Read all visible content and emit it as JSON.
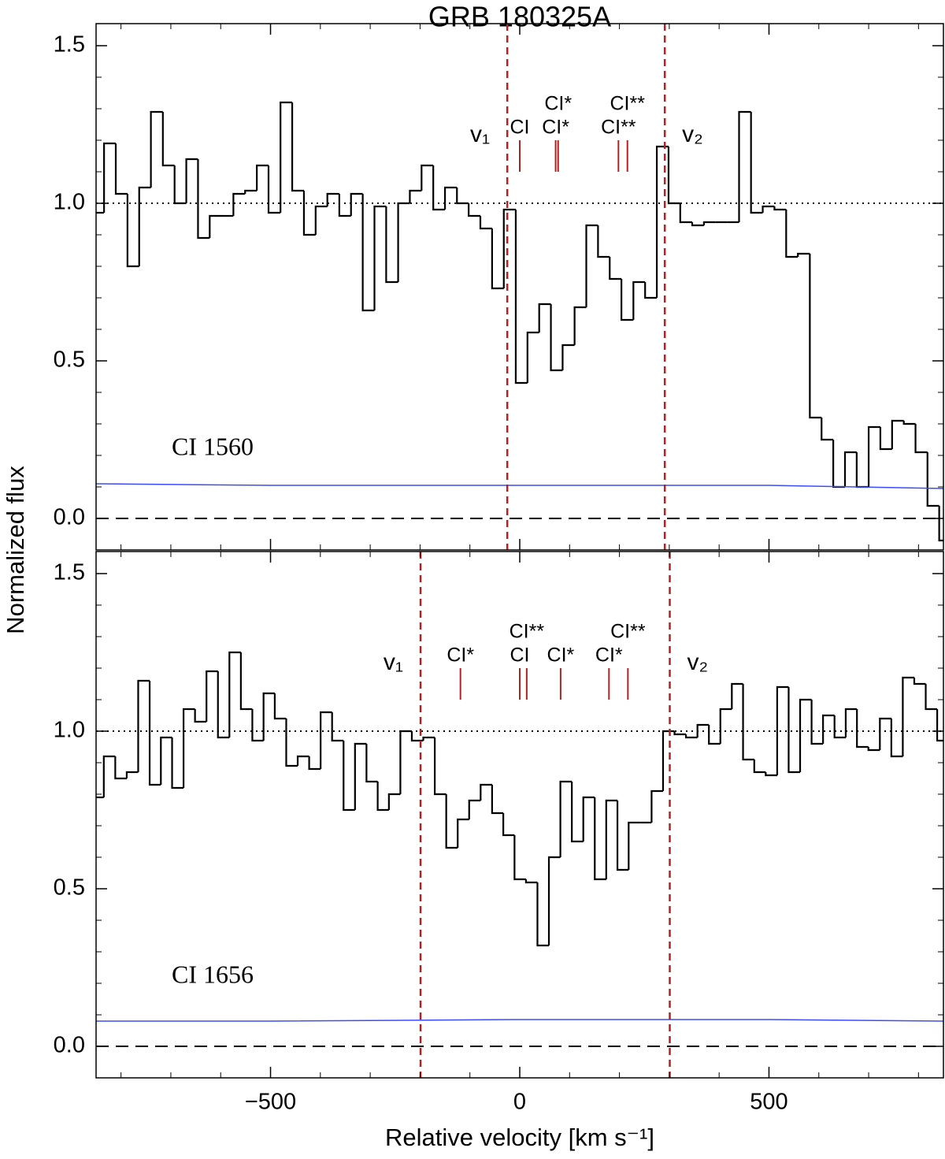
{
  "figure": {
    "title": "GRB 180325A",
    "y_label": "Normalized flux"
  },
  "chart_data": [
    {
      "type": "step",
      "panel_label": "CI 1560",
      "xlim": [
        -850,
        850
      ],
      "ylim": [
        -0.1,
        1.57
      ],
      "xticks": [
        -500,
        0,
        500
      ],
      "show_xtick_labels": false,
      "xminor": [
        -800,
        -700,
        -600,
        -400,
        -300,
        -200,
        -100,
        100,
        200,
        300,
        400,
        600,
        700,
        800
      ],
      "yticks": [
        {
          "value": 0,
          "label": "0.0"
        },
        {
          "value": 0.5,
          "label": "0.5"
        },
        {
          "value": 1,
          "label": "1.0"
        },
        {
          "value": 1.5,
          "label": "1.5"
        }
      ],
      "yminor": [
        0.1,
        0.2,
        0.3,
        0.4,
        0.6,
        0.7,
        0.8,
        0.9,
        1.1,
        1.2,
        1.3,
        1.4
      ],
      "reference_lines": [
        {
          "y": 1,
          "style": "dotted"
        },
        {
          "y": 0,
          "style": "dashed"
        }
      ],
      "series": [
        {
          "name": "flux",
          "color": "#000000",
          "x": [
            -846,
            -822,
            -799,
            -775,
            -752,
            -728,
            -704,
            -681,
            -657,
            -634,
            -610,
            -586,
            -563,
            -539,
            -516,
            -492,
            -468,
            -445,
            -421,
            -398,
            -374,
            -350,
            -327,
            -303,
            -280,
            -256,
            -232,
            -209,
            -185,
            -162,
            -138,
            -114,
            -91,
            -67,
            -44,
            -20,
            4,
            27,
            51,
            74,
            98,
            122,
            145,
            169,
            192,
            216,
            240,
            263,
            287,
            310,
            334,
            358,
            381,
            405,
            428,
            452,
            476,
            499,
            523,
            546,
            570,
            594,
            617,
            641,
            664,
            688,
            712,
            735,
            759,
            782,
            806,
            830,
            853
          ],
          "values": [
            0.97,
            1.19,
            1.03,
            0.8,
            1.05,
            1.29,
            1.12,
            1.0,
            1.14,
            0.89,
            0.96,
            0.96,
            1.03,
            1.04,
            1.12,
            0.97,
            1.32,
            1.04,
            0.9,
            0.99,
            1.03,
            0.96,
            1.03,
            0.66,
            0.99,
            0.75,
            1.0,
            1.04,
            1.12,
            0.98,
            1.05,
            1.0,
            0.96,
            0.92,
            0.73,
            0.98,
            0.43,
            0.59,
            0.68,
            0.47,
            0.55,
            0.67,
            0.93,
            0.83,
            0.76,
            0.63,
            0.75,
            0.7,
            1.18,
            1.0,
            0.94,
            0.93,
            0.94,
            0.94,
            0.94,
            1.29,
            0.97,
            0.99,
            0.98,
            0.83,
            0.84,
            0.32,
            0.25,
            0.1,
            0.21,
            0.1,
            0.29,
            0.22,
            0.31,
            0.3,
            0.21,
            0.04,
            -0.07
          ]
        },
        {
          "name": "error",
          "color": "#3a4cff",
          "x": [
            -850,
            -500,
            0,
            500,
            850
          ],
          "values": [
            0.11,
            0.105,
            0.105,
            0.105,
            0.095
          ]
        }
      ],
      "vlines": [
        {
          "x": -25,
          "label": "v₁",
          "side": "left"
        },
        {
          "x": 291,
          "label": "v₂",
          "side": "right"
        }
      ],
      "vline_color": "#b22222",
      "markers": [
        {
          "x": 0,
          "label": "CI"
        },
        {
          "x": 72,
          "label": "CI*"
        },
        {
          "x": 77,
          "label": "CI*"
        },
        {
          "x": 198,
          "label": "CI**"
        },
        {
          "x": 216,
          "label": "CI**"
        }
      ]
    },
    {
      "type": "step",
      "panel_label": "CI 1656",
      "x_label": "Relative velocity  [km s⁻¹]",
      "xlim": [
        -850,
        850
      ],
      "ylim": [
        -0.1,
        1.57
      ],
      "xticks": [
        {
          "value": -500,
          "label": "−500"
        },
        0,
        500
      ],
      "show_xtick_labels": true,
      "xminor": [
        -800,
        -700,
        -600,
        -400,
        -300,
        -200,
        -100,
        100,
        200,
        300,
        400,
        600,
        700,
        800
      ],
      "yticks": [
        {
          "value": 0,
          "label": "0.0"
        },
        {
          "value": 0.5,
          "label": "0.5"
        },
        {
          "value": 1,
          "label": "1.0"
        },
        {
          "value": 1.5,
          "label": "1.5"
        }
      ],
      "yminor": [
        0.1,
        0.2,
        0.3,
        0.4,
        0.6,
        0.7,
        0.8,
        0.9,
        1.1,
        1.2,
        1.3,
        1.4
      ],
      "reference_lines": [
        {
          "y": 1,
          "style": "dotted"
        },
        {
          "y": 0,
          "style": "dashed"
        }
      ],
      "series": [
        {
          "name": "flux",
          "color": "#000000",
          "x": [
            -846,
            -823,
            -800,
            -777,
            -754,
            -731,
            -709,
            -686,
            -663,
            -640,
            -617,
            -594,
            -571,
            -548,
            -525,
            -503,
            -480,
            -457,
            -434,
            -411,
            -388,
            -365,
            -342,
            -319,
            -296,
            -274,
            -251,
            -228,
            -205,
            -182,
            -159,
            -136,
            -113,
            -90,
            -67,
            -44,
            -22,
            1,
            24,
            47,
            70,
            93,
            116,
            139,
            162,
            185,
            207,
            230,
            253,
            276,
            299,
            322,
            345,
            368,
            391,
            414,
            437,
            459,
            482,
            505,
            528,
            551,
            574,
            597,
            620,
            643,
            665,
            688,
            711,
            734,
            757,
            780,
            803,
            826,
            849
          ],
          "values": [
            0.79,
            0.92,
            0.85,
            0.87,
            1.16,
            0.83,
            0.98,
            0.82,
            1.07,
            1.03,
            1.19,
            0.98,
            1.25,
            1.07,
            0.97,
            1.12,
            1.04,
            0.89,
            0.92,
            0.88,
            1.06,
            0.97,
            0.75,
            0.96,
            0.84,
            0.75,
            0.8,
            1.0,
            0.97,
            0.98,
            0.8,
            0.63,
            0.72,
            0.78,
            0.83,
            0.74,
            0.67,
            0.53,
            0.52,
            0.32,
            0.6,
            0.84,
            0.65,
            0.79,
            0.53,
            0.78,
            0.56,
            0.71,
            0.71,
            0.81,
            1.0,
            0.99,
            0.98,
            1.02,
            0.96,
            1.07,
            1.15,
            0.91,
            0.87,
            0.86,
            1.14,
            0.87,
            1.1,
            0.96,
            1.05,
            0.98,
            1.07,
            0.95,
            0.94,
            1.04,
            0.92,
            1.17,
            1.15,
            1.07,
            0.97
          ]
        },
        {
          "name": "error",
          "color": "#3a4cff",
          "x": [
            -850,
            -500,
            0,
            500,
            850
          ],
          "values": [
            0.08,
            0.08,
            0.085,
            0.085,
            0.08
          ]
        }
      ],
      "vlines": [
        {
          "x": -199,
          "label": "v₁",
          "side": "left"
        },
        {
          "x": 301,
          "label": "v₂",
          "side": "right"
        }
      ],
      "vline_color": "#b22222",
      "markers": [
        {
          "x": -119,
          "label": "CI*"
        },
        {
          "x": 0,
          "label": "CI"
        },
        {
          "x": 14,
          "label": "CI**"
        },
        {
          "x": 82,
          "label": "CI*"
        },
        {
          "x": 179,
          "label": "CI*"
        },
        {
          "x": 217,
          "label": "CI**"
        }
      ]
    }
  ]
}
